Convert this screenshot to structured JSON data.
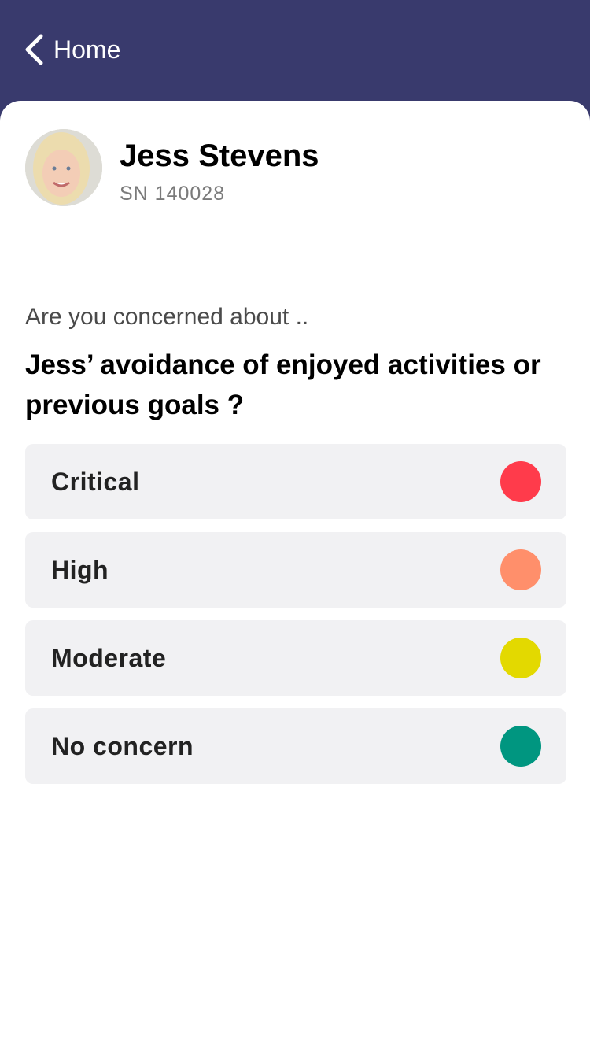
{
  "nav": {
    "back_label": "Home"
  },
  "student": {
    "name": "Jess Stevens",
    "sn": "SN 140028"
  },
  "prompt": "Are you concerned about ..",
  "question": "Jess’ avoidance of enjoyed activities or previous goals ?",
  "options": [
    {
      "label": "Critical",
      "color": "#ff3b4b"
    },
    {
      "label": "High",
      "color": "#ff8f6b"
    },
    {
      "label": "Moderate",
      "color": "#e3d900"
    },
    {
      "label": "No concern",
      "color": "#009680"
    }
  ]
}
